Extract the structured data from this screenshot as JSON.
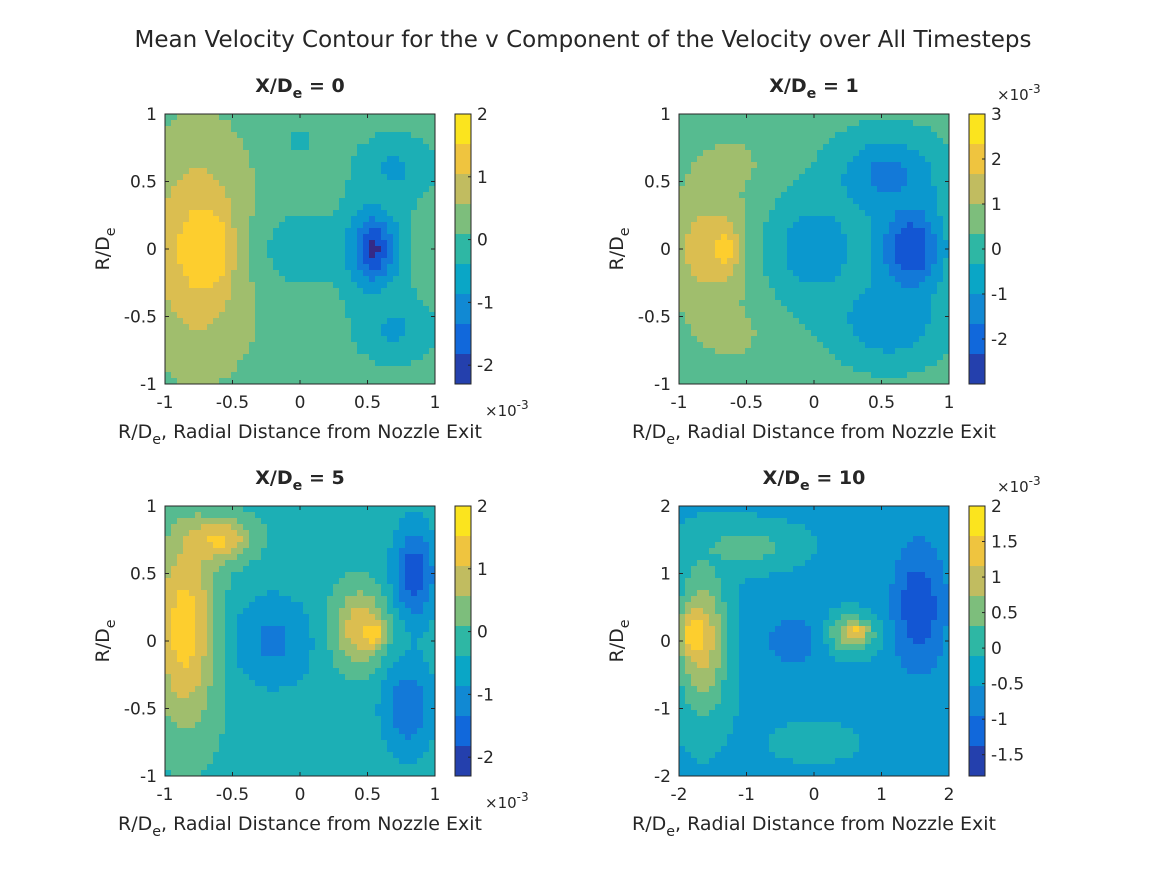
{
  "figure": {
    "suptitle": "Mean Velocity Contour for the v Component of the Velocity over All Timesteps",
    "colormap": [
      "#352a87",
      "#0f5cdd",
      "#1481d6",
      "#06a4ca",
      "#2eb7a4",
      "#87bf77",
      "#d1bb59",
      "#fec832",
      "#f9fb0e"
    ]
  },
  "chart_data": [
    {
      "type": "heatmap",
      "title_main": "X/D",
      "title_sub": "e",
      "title_rest": " = 0",
      "ylabel_main": "R/D",
      "ylabel_sub": "e",
      "xlabel_main": "R/D",
      "xlabel_sub": "e",
      "xlabel_rest": ", Radial Distance from Nozzle Exit",
      "xlim": [
        -1,
        1
      ],
      "ylim": [
        -1,
        1
      ],
      "xticks": [
        "-1",
        "-0.5",
        "0",
        "0.5",
        "1"
      ],
      "yticks": [
        "1",
        "0.5",
        "0",
        "-0.5",
        "-1"
      ],
      "clim": [
        -2.3,
        2.0
      ],
      "cticks": [
        "2",
        "1",
        "0",
        "-1",
        "-2"
      ],
      "cexp": "×10",
      "cexp_power": "-3",
      "cexp_pos": "bottom",
      "background": 0.2,
      "blobs": [
        {
          "x": -0.75,
          "y": 0.0,
          "rx": 0.45,
          "ry": 0.85,
          "v": 1.5
        },
        {
          "x": -0.62,
          "y": 0.0,
          "rx": 0.12,
          "ry": 0.25,
          "v": 1.8
        },
        {
          "x": 0.0,
          "y": 0.0,
          "rx": 0.45,
          "ry": 0.45,
          "v": -0.4
        },
        {
          "x": 0.55,
          "y": 0.0,
          "rx": 0.28,
          "ry": 0.45,
          "v": -1.6
        },
        {
          "x": 0.55,
          "y": 0.0,
          "rx": 0.1,
          "ry": 0.2,
          "v": -2.2
        },
        {
          "x": 0.7,
          "y": 0.6,
          "rx": 0.4,
          "ry": 0.35,
          "v": -0.7
        },
        {
          "x": 0.7,
          "y": -0.6,
          "rx": 0.4,
          "ry": 0.35,
          "v": -0.7
        },
        {
          "x": 0.0,
          "y": 0.8,
          "rx": 0.3,
          "ry": 0.3,
          "v": -0.2
        }
      ]
    },
    {
      "type": "heatmap",
      "title_main": "X/D",
      "title_sub": "e",
      "title_rest": " = 1",
      "ylabel_main": "R/D",
      "ylabel_sub": "e",
      "xlabel_main": "R/D",
      "xlabel_sub": "e",
      "xlabel_rest": ", Radial Distance from Nozzle Exit",
      "xlim": [
        -1,
        1
      ],
      "ylim": [
        -1,
        1
      ],
      "xticks": [
        "-1",
        "-0.5",
        "0",
        "0.5",
        "1"
      ],
      "yticks": [
        "1",
        "0.5",
        "0",
        "-0.5",
        "-1"
      ],
      "clim": [
        -3.0,
        3.0
      ],
      "cticks": [
        "3",
        "2",
        "1",
        "0",
        "-1",
        "-2"
      ],
      "cexp": "×10",
      "cexp_power": "-3",
      "cexp_pos": "top",
      "background": 0.2,
      "blobs": [
        {
          "x": -0.75,
          "y": 0.0,
          "rx": 0.42,
          "ry": 0.62,
          "v": 1.9
        },
        {
          "x": -0.65,
          "y": 0.0,
          "rx": 0.1,
          "ry": 0.2,
          "v": 2.8
        },
        {
          "x": -0.6,
          "y": 0.6,
          "rx": 0.5,
          "ry": 0.4,
          "v": 0.8
        },
        {
          "x": -0.6,
          "y": -0.6,
          "rx": 0.5,
          "ry": 0.4,
          "v": 0.8
        },
        {
          "x": 0.0,
          "y": 0.0,
          "rx": 0.5,
          "ry": 0.55,
          "v": -1.0
        },
        {
          "x": 0.72,
          "y": 0.0,
          "rx": 0.3,
          "ry": 0.45,
          "v": -2.7
        },
        {
          "x": 0.55,
          "y": 0.55,
          "rx": 0.45,
          "ry": 0.35,
          "v": -1.6
        },
        {
          "x": 0.55,
          "y": -0.55,
          "rx": 0.45,
          "ry": 0.35,
          "v": -1.3
        }
      ]
    },
    {
      "type": "heatmap",
      "title_main": "X/D",
      "title_sub": "e",
      "title_rest": " = 5",
      "ylabel_main": "R/D",
      "ylabel_sub": "e",
      "xlabel_main": "R/D",
      "xlabel_sub": "e",
      "xlabel_rest": ", Radial Distance from Nozzle Exit",
      "xlim": [
        -1,
        1
      ],
      "ylim": [
        -1,
        1
      ],
      "xticks": [
        "-1",
        "-0.5",
        "0",
        "0.5",
        "1"
      ],
      "yticks": [
        "1",
        "0.5",
        "0",
        "-0.5",
        "-1"
      ],
      "clim": [
        -2.3,
        2.0
      ],
      "cticks": [
        "2",
        "1",
        "0",
        "-1",
        "-2"
      ],
      "cexp": "×10",
      "cexp_power": "-3",
      "cexp_pos": "bottom",
      "background": -0.3,
      "blobs": [
        {
          "x": -0.85,
          "y": 0.1,
          "rx": 0.3,
          "ry": 0.9,
          "v": 1.6
        },
        {
          "x": -0.6,
          "y": 0.75,
          "rx": 0.3,
          "ry": 0.2,
          "v": 1.4
        },
        {
          "x": -0.2,
          "y": 0.0,
          "rx": 0.4,
          "ry": 0.45,
          "v": -1.2
        },
        {
          "x": 0.45,
          "y": 0.1,
          "rx": 0.25,
          "ry": 0.35,
          "v": 1.2
        },
        {
          "x": 0.55,
          "y": 0.05,
          "rx": 0.1,
          "ry": 0.1,
          "v": 1.7
        },
        {
          "x": 0.85,
          "y": 0.5,
          "rx": 0.2,
          "ry": 0.45,
          "v": -1.9
        },
        {
          "x": 0.8,
          "y": -0.5,
          "rx": 0.25,
          "ry": 0.45,
          "v": -1.5
        }
      ]
    },
    {
      "type": "heatmap",
      "title_main": "X/D",
      "title_sub": "e",
      "title_rest": " = 10",
      "ylabel_main": "R/D",
      "ylabel_sub": "e",
      "xlabel_main": "R/D",
      "xlabel_sub": "e",
      "xlabel_rest": ", Radial Distance from Nozzle Exit",
      "xlim": [
        -2,
        2
      ],
      "ylim": [
        -2,
        2
      ],
      "xticks": [
        "-2",
        "-1",
        "0",
        "1",
        "2"
      ],
      "yticks": [
        "2",
        "1",
        "0",
        "-1",
        "-2"
      ],
      "clim": [
        -1.8,
        2.0
      ],
      "cticks": [
        "2",
        "1.5",
        "1",
        "0.5",
        "0",
        "-0.5",
        "-1",
        "-1.5"
      ],
      "cexp": "×10",
      "cexp_power": "-3",
      "cexp_pos": "top",
      "background": -0.4,
      "blobs": [
        {
          "x": -1.65,
          "y": 0.0,
          "rx": 0.45,
          "ry": 1.3,
          "v": 1.2
        },
        {
          "x": -1.8,
          "y": 0.1,
          "rx": 0.2,
          "ry": 0.35,
          "v": 1.8
        },
        {
          "x": -1.0,
          "y": 1.4,
          "rx": 0.9,
          "ry": 0.4,
          "v": 0.3
        },
        {
          "x": 0.5,
          "y": 0.1,
          "rx": 0.5,
          "ry": 0.35,
          "v": 1.1
        },
        {
          "x": 0.6,
          "y": 0.15,
          "rx": 0.2,
          "ry": 0.12,
          "v": 1.6
        },
        {
          "x": -0.3,
          "y": 0.0,
          "rx": 0.7,
          "ry": 0.7,
          "v": -0.9
        },
        {
          "x": 1.55,
          "y": 0.5,
          "rx": 0.5,
          "ry": 1.2,
          "v": -1.5
        },
        {
          "x": 0.0,
          "y": -1.5,
          "rx": 0.9,
          "ry": 0.4,
          "v": -0.2
        }
      ]
    }
  ]
}
